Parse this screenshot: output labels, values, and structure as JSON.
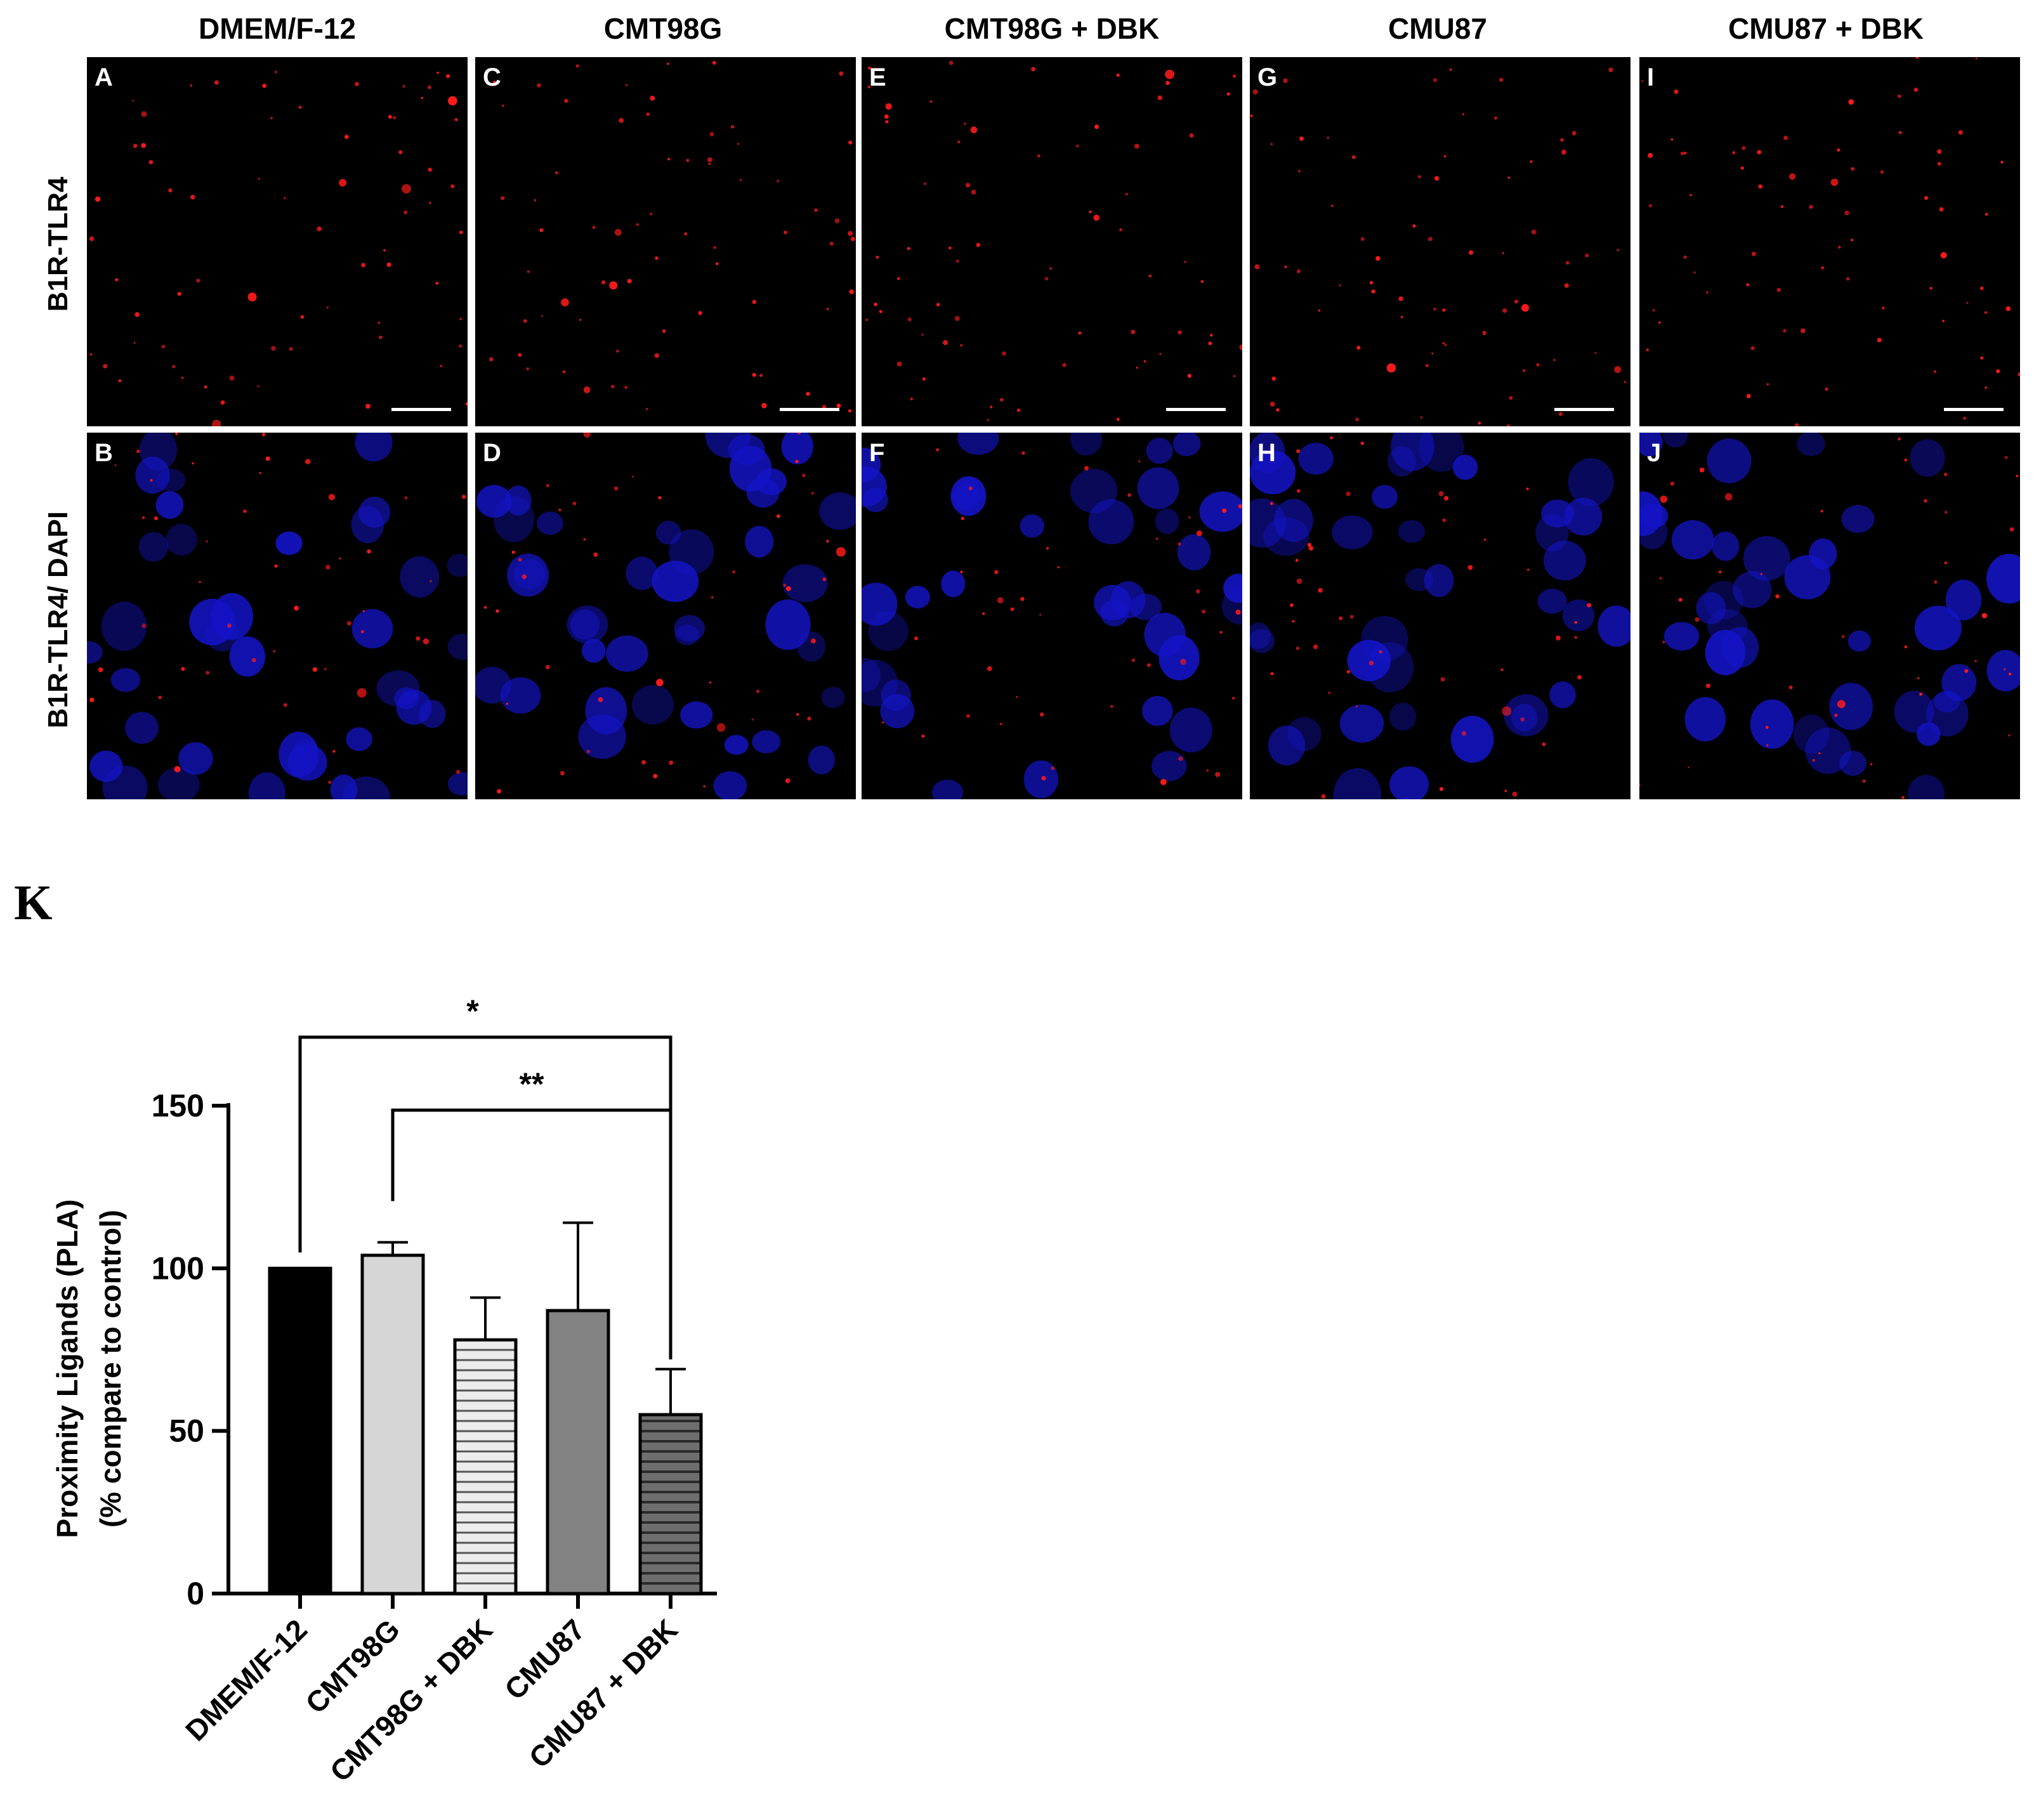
{
  "columns": [
    "DMEM/F-12",
    "CMT98G",
    "CMT98G + DBK",
    "CMU87",
    "CMU87 + DBK"
  ],
  "rows": [
    "B1R-TLR4",
    "B1R-TLR4/ DAPI"
  ],
  "panel_letters": [
    [
      "A",
      "C",
      "E",
      "G",
      "I"
    ],
    [
      "B",
      "D",
      "F",
      "H",
      "J"
    ]
  ],
  "section_label": "K",
  "colors": {
    "pla_signal": "#ff1a1a",
    "dapi": "#1414c8",
    "background": "#000000"
  },
  "chart_data": {
    "type": "bar",
    "categories": [
      "DMEM/F-12",
      "CMT98G",
      "CMT98G + DBK",
      "CMU87",
      "CMU87 + DBK"
    ],
    "values": [
      100,
      104,
      78,
      87,
      55
    ],
    "error_upper": [
      0,
      4,
      13,
      27,
      14
    ],
    "bar_fills": [
      "black",
      "light-gray",
      "horizontal-stripes",
      "dark-gray",
      "dark-horizontal-stripes"
    ],
    "ylabel_line1": "Proximity Ligands (PLA)",
    "ylabel_line2": "(% compare to control)",
    "xlabel": "",
    "ylim": [
      0,
      150
    ],
    "yticks": [
      0,
      50,
      100,
      150
    ],
    "significance": [
      {
        "from": "DMEM/F-12",
        "to": "CMU87 + DBK",
        "label": "*"
      },
      {
        "from": "CMT98G",
        "to": "CMU87 + DBK",
        "label": "**"
      }
    ]
  }
}
